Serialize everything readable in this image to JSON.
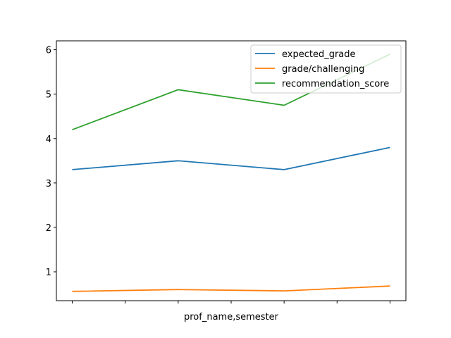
{
  "chart_data": {
    "type": "line",
    "title": "",
    "xlabel": "prof_name,semester",
    "ylabel": "",
    "x": [
      0,
      1,
      2,
      3
    ],
    "ylim": [
      0.35,
      6.2
    ],
    "yticks": [
      1,
      2,
      3,
      4,
      5,
      6
    ],
    "grid": false,
    "legend_position": "top-right",
    "series": [
      {
        "name": "expected_grade",
        "color": "#1f77b4",
        "values": [
          3.3,
          3.5,
          3.3,
          3.8
        ]
      },
      {
        "name": "grade/challenging",
        "color": "#ff7f0e",
        "values": [
          0.56,
          0.6,
          0.57,
          0.68
        ]
      },
      {
        "name": "recommendation_score",
        "color": "#2ca02c",
        "values": [
          4.2,
          5.1,
          4.75,
          5.9
        ]
      }
    ]
  }
}
